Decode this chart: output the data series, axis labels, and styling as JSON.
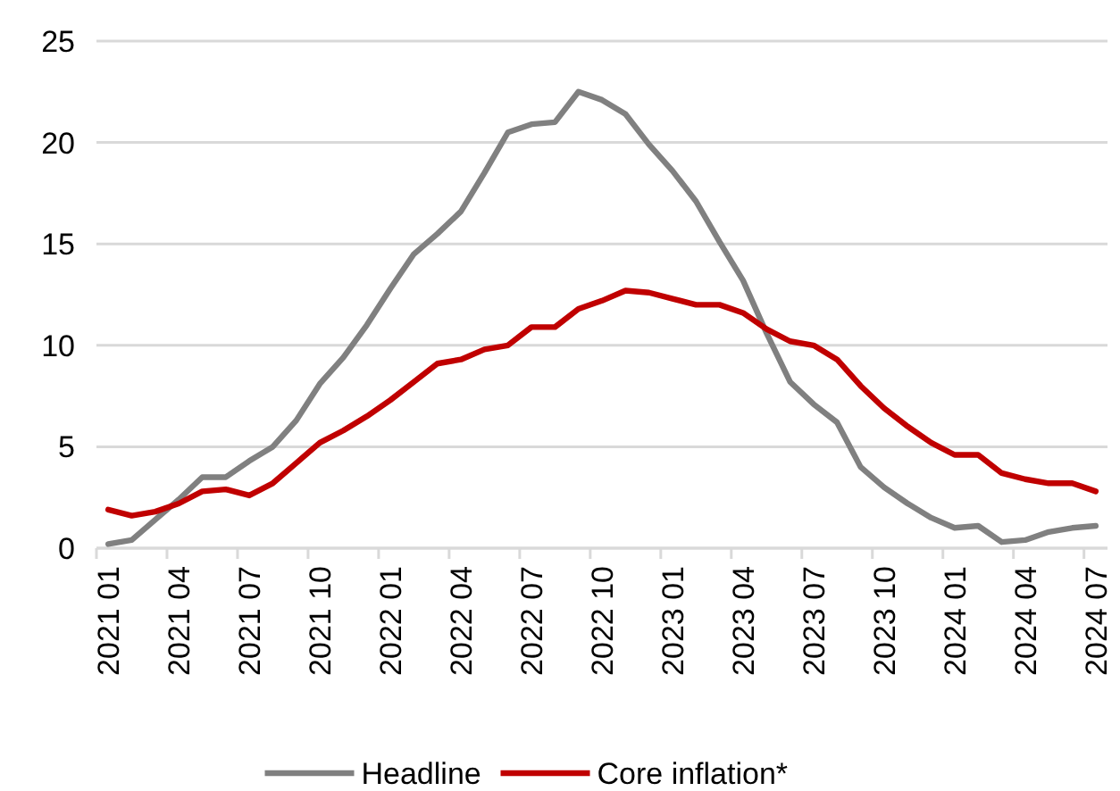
{
  "chart_data": {
    "type": "line",
    "categories": [
      "2021 01",
      null,
      null,
      "2021 04",
      null,
      null,
      "2021 07",
      null,
      null,
      "2021 10",
      null,
      null,
      "2022 01",
      null,
      null,
      "2022 04",
      null,
      null,
      "2022 07",
      null,
      null,
      "2022 10",
      null,
      null,
      "2023 01",
      null,
      null,
      "2023 04",
      null,
      null,
      "2023 07",
      null,
      null,
      "2023 10",
      null,
      null,
      "2024 01",
      null,
      null,
      "2024 04",
      null,
      null,
      "2024 07"
    ],
    "series": [
      {
        "name": "Headline",
        "color": "#808080",
        "values": [
          0.2,
          0.4,
          1.4,
          2.4,
          3.5,
          3.5,
          4.3,
          5.0,
          6.3,
          8.1,
          9.4,
          11.0,
          12.8,
          14.5,
          15.5,
          16.6,
          18.5,
          20.5,
          20.9,
          21.0,
          22.5,
          22.1,
          21.4,
          19.9,
          18.6,
          17.1,
          15.1,
          13.2,
          10.6,
          8.2,
          7.1,
          6.2,
          4.0,
          3.0,
          2.2,
          1.5,
          1.0,
          1.1,
          0.3,
          0.4,
          0.8,
          1.0,
          1.1
        ]
      },
      {
        "name": "Core inflation*",
        "color": "#c00000",
        "values": [
          1.9,
          1.6,
          1.8,
          2.2,
          2.8,
          2.9,
          2.6,
          3.2,
          4.2,
          5.2,
          5.8,
          6.5,
          7.3,
          8.2,
          9.1,
          9.3,
          9.8,
          10.0,
          10.9,
          10.9,
          11.8,
          12.2,
          12.7,
          12.6,
          12.3,
          12.0,
          12.0,
          11.6,
          10.8,
          10.2,
          10.0,
          9.3,
          8.0,
          6.9,
          6.0,
          5.2,
          4.6,
          4.6,
          3.7,
          3.4,
          3.2,
          3.2,
          2.8
        ]
      }
    ],
    "ylim": [
      0,
      25
    ],
    "yticks": [
      0,
      5,
      10,
      15,
      20,
      25
    ],
    "grid": "y",
    "legend": "bottom",
    "marker": "none",
    "line_style": "solid"
  }
}
